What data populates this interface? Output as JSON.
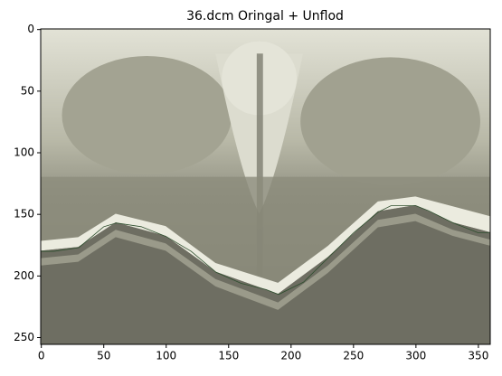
{
  "chart_data": {
    "type": "image",
    "title": "36.dcm  Oringal + Unflod",
    "xlim": [
      -0.5,
      359.5
    ],
    "ylim": [
      255.5,
      -0.5
    ],
    "xticks": [
      0,
      50,
      100,
      150,
      200,
      250,
      300,
      350
    ],
    "yticks": [
      0,
      50,
      100,
      150,
      200,
      250
    ],
    "series": [
      {
        "color": "#2f4f2f",
        "x": [
          0,
          10,
          30,
          50,
          60,
          80,
          100,
          120,
          140,
          160,
          180,
          190,
          210,
          230,
          250,
          270,
          280,
          300,
          310,
          330,
          350,
          359
        ],
        "values": [
          180,
          180,
          177,
          160,
          157,
          160,
          168,
          180,
          197,
          206,
          211,
          215,
          205,
          185,
          165,
          148,
          143,
          143,
          147,
          157,
          165,
          165
        ]
      }
    ]
  }
}
